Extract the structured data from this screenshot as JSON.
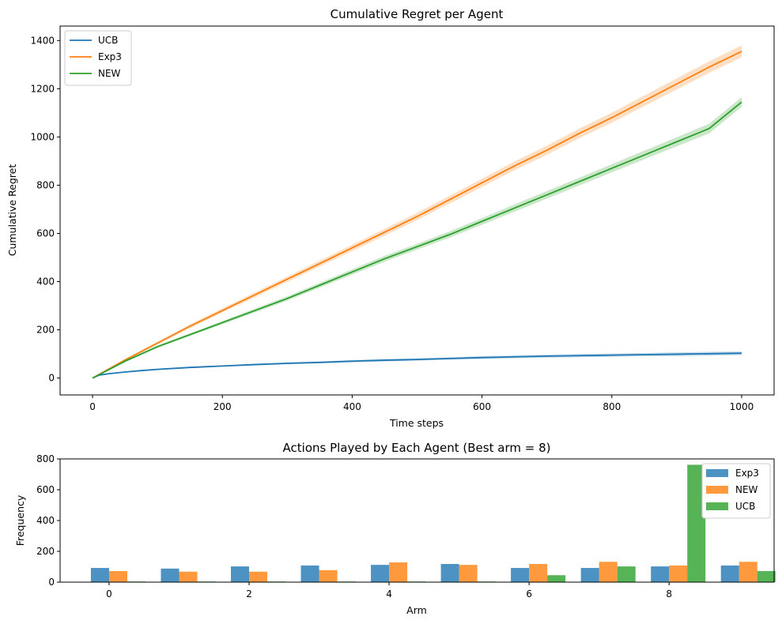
{
  "chart_data": [
    {
      "type": "line",
      "title": "Cumulative Regret per Agent",
      "xlabel": "Time steps",
      "ylabel": "Cumulative Regret",
      "xlim": [
        -50,
        1050
      ],
      "ylim": [
        -70,
        1460
      ],
      "xticks": [
        0,
        200,
        400,
        600,
        800,
        1000
      ],
      "yticks": [
        0,
        200,
        400,
        600,
        800,
        1000,
        1200,
        1400
      ],
      "grid": false,
      "legend_position": "top-left",
      "series": [
        {
          "name": "UCB",
          "color": "#1f77b4",
          "x": [
            0,
            10,
            25,
            50,
            75,
            100,
            150,
            200,
            250,
            300,
            350,
            400,
            450,
            500,
            550,
            600,
            650,
            700,
            750,
            800,
            850,
            900,
            950,
            1000
          ],
          "y": [
            0,
            12,
            18,
            25,
            31,
            36,
            44,
            50,
            56,
            61,
            65,
            70,
            74,
            77,
            81,
            85,
            88,
            91,
            93,
            95,
            97,
            99,
            101,
            103
          ],
          "band": [
            0,
            1,
            2,
            2,
            2,
            3,
            3,
            3,
            4,
            4,
            4,
            5,
            5,
            5,
            5,
            6,
            6,
            6,
            7,
            7,
            7,
            8,
            8,
            8
          ]
        },
        {
          "name": "Exp3",
          "color": "#ff7f0e",
          "x": [
            0,
            50,
            100,
            150,
            200,
            250,
            300,
            350,
            400,
            450,
            500,
            550,
            600,
            650,
            700,
            750,
            800,
            850,
            900,
            950,
            1000
          ],
          "y": [
            0,
            75,
            145,
            215,
            280,
            345,
            410,
            475,
            540,
            605,
            670,
            740,
            810,
            880,
            945,
            1015,
            1080,
            1150,
            1220,
            1290,
            1355
          ],
          "band": [
            0,
            4,
            6,
            8,
            9,
            10,
            11,
            12,
            13,
            14,
            15,
            16,
            17,
            18,
            19,
            20,
            21,
            22,
            23,
            24,
            25
          ]
        },
        {
          "name": "NEW",
          "color": "#2ca02c",
          "x": [
            0,
            50,
            100,
            150,
            200,
            250,
            300,
            350,
            400,
            450,
            500,
            550,
            600,
            650,
            700,
            750,
            800,
            850,
            900,
            950,
            1000
          ],
          "y": [
            0,
            70,
            130,
            180,
            230,
            280,
            330,
            385,
            440,
            495,
            545,
            595,
            650,
            705,
            760,
            815,
            870,
            925,
            980,
            1035,
            1145
          ],
          "band": [
            0,
            4,
            5,
            6,
            7,
            8,
            9,
            10,
            11,
            12,
            12,
            13,
            14,
            15,
            16,
            16,
            17,
            18,
            19,
            20,
            20
          ]
        }
      ],
      "legend": [
        "UCB",
        "Exp3",
        "NEW"
      ]
    },
    {
      "type": "bar",
      "title": "Actions Played by Each Agent (Best arm = 8)",
      "xlabel": "Arm",
      "ylabel": "Frequency",
      "xlim": [
        -0.7,
        9.5
      ],
      "ylim": [
        0,
        800
      ],
      "xticks": [
        0,
        2,
        4,
        6,
        8
      ],
      "yticks": [
        0,
        200,
        400,
        600,
        800
      ],
      "grid": false,
      "legend_position": "top-right",
      "categories": [
        0,
        1,
        2,
        3,
        4,
        5,
        6,
        7,
        8,
        9
      ],
      "series": [
        {
          "name": "Exp3",
          "color": "#1f77b4",
          "values": [
            92,
            88,
            102,
            108,
            112,
            118,
            92,
            92,
            102,
            108
          ]
        },
        {
          "name": "NEW",
          "color": "#ff7f0e",
          "values": [
            72,
            68,
            68,
            78,
            128,
            112,
            118,
            132,
            108,
            132
          ]
        },
        {
          "name": "UCB",
          "color": "#2ca02c",
          "values": [
            4,
            4,
            4,
            4,
            4,
            4,
            45,
            102,
            762,
            72
          ]
        }
      ],
      "legend": [
        "Exp3",
        "NEW",
        "UCB"
      ]
    }
  ]
}
